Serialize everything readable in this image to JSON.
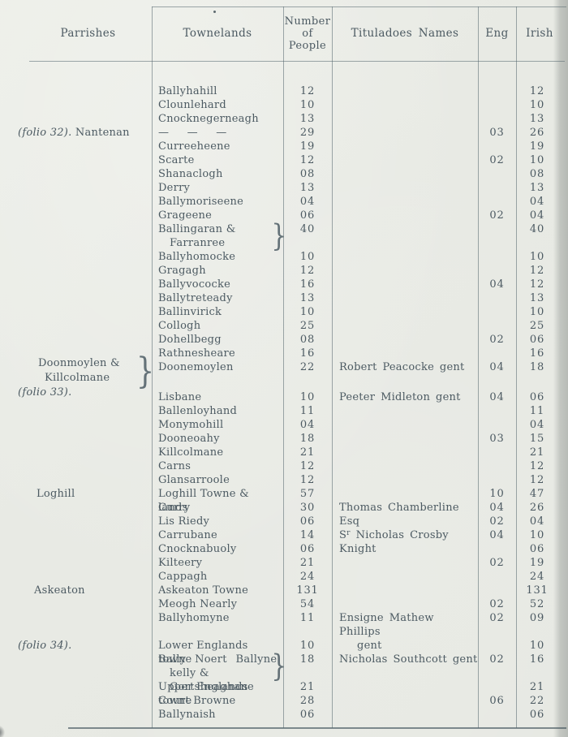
{
  "glyphs": {
    "brace": "}"
  },
  "table": {
    "header": {
      "parish": "Parrishes",
      "towneland": "Townelands",
      "people": [
        "Number",
        "of",
        "People"
      ],
      "tituladoe": "Tituladoes Names",
      "eng": "Eng",
      "irish": "Irish"
    },
    "rows": [
      {
        "t": [
          "Ballyhahill"
        ],
        "n": "12",
        "i": "12"
      },
      {
        "t": [
          "Clounlehard"
        ],
        "n": "10",
        "i": "10"
      },
      {
        "t": [
          "Cnocknegerneagh"
        ],
        "n": "13",
        "i": "13"
      },
      {
        "t": [
          "— — —"
        ],
        "dash": true,
        "n": "29",
        "e": "03",
        "i": "26",
        "parish": [
          [
            {
              "it": "(folio 32)."
            },
            {
              "tx": "  Nantenan"
            }
          ]
        ]
      },
      {
        "t": [
          "Curreeheene"
        ],
        "n": "19",
        "i": "19"
      },
      {
        "t": [
          "Scarte"
        ],
        "n": "12",
        "e": "02",
        "i": "10"
      },
      {
        "t": [
          "Shanaclogh"
        ],
        "n": "08",
        "i": "08"
      },
      {
        "t": [
          "Derry"
        ],
        "n": "13",
        "i": "13"
      },
      {
        "t": [
          "Ballymoriseene"
        ],
        "n": "04",
        "i": "04"
      },
      {
        "t": [
          "Grageene"
        ],
        "n": "06",
        "e": "02",
        "i": "04"
      },
      {
        "t": [
          "Ballingaran &",
          "Farranree"
        ],
        "tbrace": true,
        "n": "40",
        "i": "40"
      },
      {
        "t": [
          "Ballyhomocke"
        ],
        "n": "10",
        "i": "10"
      },
      {
        "t": [
          "Gragagh"
        ],
        "n": "12",
        "i": "12"
      },
      {
        "t": [
          "Ballyvococke"
        ],
        "n": "16",
        "e": "04",
        "i": "12"
      },
      {
        "t": [
          "Ballytreteady"
        ],
        "n": "13",
        "i": "13"
      },
      {
        "t": [
          "Ballinvirick"
        ],
        "n": "10",
        "i": "10"
      },
      {
        "t": [
          "Collogh"
        ],
        "n": "25",
        "i": "25"
      },
      {
        "t": [
          "Dohellbegg"
        ],
        "n": "08",
        "e": "02",
        "i": "06"
      },
      {
        "t": [
          "Rathnesheare"
        ],
        "n": "16",
        "i": "16"
      },
      {
        "t": [
          "Doonemoylen"
        ],
        "n": "22",
        "ti": [
          "Robert Peacocke gent"
        ],
        "e": "04",
        "i": "18",
        "pblock": {
          "lines": [
            [
              {
                "tx": "Doonmoylen &"
              }
            ],
            [
              {
                "tx": "Killcolmane"
              }
            ],
            [
              {
                "it": "(folio 33)."
              }
            ]
          ],
          "brace": true
        }
      },
      {
        "spacer": true
      },
      {
        "t": [
          "Lisbane"
        ],
        "n": "10",
        "ti": [
          "Peeter Midleton gent"
        ],
        "e": "04",
        "i": "06"
      },
      {
        "t": [
          "Ballenloyhand"
        ],
        "n": "11",
        "i": "11"
      },
      {
        "t": [
          "Monymohill"
        ],
        "n": "04",
        "i": "04"
      },
      {
        "t": [
          "Dooneoahy"
        ],
        "n": "18",
        "e": "03",
        "i": "15"
      },
      {
        "t": [
          "Killcolmane"
        ],
        "n": "21",
        "i": "21"
      },
      {
        "t": [
          "Carns"
        ],
        "n": "12",
        "i": "12"
      },
      {
        "t": [
          "Glansarroole"
        ],
        "n": "12",
        "i": "12"
      },
      {
        "t": [
          "Loghill Towne & lands"
        ],
        "n": "57",
        "e": "10",
        "i": "47",
        "parish": [
          [
            {
              "tx": "Loghill"
            }
          ]
        ],
        "pindent": 23
      },
      {
        "t": [
          "Curry"
        ],
        "n": "30",
        "ti": [
          "Thomas Chamberline Esq"
        ],
        "e": "04",
        "i": "26"
      },
      {
        "t": [
          "Lis Riedy"
        ],
        "n": "06",
        "e": "02",
        "i": "04"
      },
      {
        "t": [
          "Carrubane"
        ],
        "n": "14",
        "ti": [
          "Sʳ Nicholas Crosby Knight"
        ],
        "e": "04",
        "i": "10"
      },
      {
        "t": [
          "Cnocknabuoly"
        ],
        "n": "06",
        "i": "06"
      },
      {
        "t": [
          "Kilteery"
        ],
        "n": "21",
        "e": "02",
        "i": "19"
      },
      {
        "t": [
          "Cappagh"
        ],
        "n": "24",
        "i": "24"
      },
      {
        "t": [
          "Askeaton Towne"
        ],
        "n": "131",
        "i": "131",
        "parish": [
          [
            {
              "tx": "Askeaton"
            }
          ]
        ],
        "pindent": 20
      },
      {
        "t": [
          "Meogh Nearly"
        ],
        "n": "54",
        "e": "02",
        "i": "52"
      },
      {
        "t": [
          "Ballyhomyne"
        ],
        "n": "11",
        "ti": [
          "Ensigne Mathew Phillips",
          "gent"
        ],
        "e": "02",
        "i": "09"
      },
      {
        "t": [
          "Lower Englands towne"
        ],
        "n": "10",
        "i": "10",
        "parish": [
          [
            {
              "it": "(folio 34)."
            }
          ]
        ],
        "pindent": 0
      },
      {
        "t": [
          "Bally Noert Ballyne",
          "kelly & Gortsheaghane"
        ],
        "justify": true,
        "tbrace": true,
        "n": "18",
        "ti": [
          "Nicholas Southcott gent"
        ],
        "e": "02",
        "i": "16"
      },
      {
        "t": [
          "Upper Englands towne"
        ],
        "n": "21",
        "i": "21"
      },
      {
        "t": [
          "Court Browne"
        ],
        "n": "28",
        "e": "06",
        "i": "22"
      },
      {
        "t": [
          "Ballynaish"
        ],
        "n": "06",
        "i": "06"
      }
    ]
  }
}
